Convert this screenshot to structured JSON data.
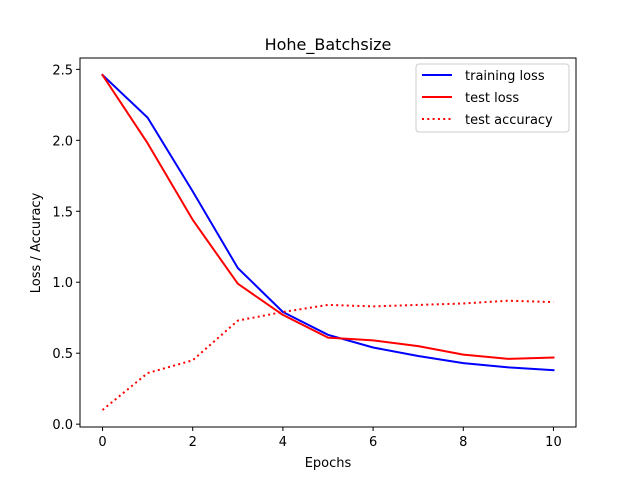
{
  "chart_data": {
    "type": "line",
    "title": "Hohe_Batchsize",
    "xlabel": "Epochs",
    "ylabel": "Loss / Accuracy",
    "xlim": [
      -0.5,
      10.5
    ],
    "ylim": [
      -0.02,
      2.58
    ],
    "xticks": [
      0,
      2,
      4,
      6,
      8,
      10
    ],
    "xtick_labels": [
      "0",
      "2",
      "4",
      "6",
      "8",
      "10"
    ],
    "yticks": [
      0.0,
      0.5,
      1.0,
      1.5,
      2.0,
      2.5
    ],
    "ytick_labels": [
      "0.0",
      "0.5",
      "1.0",
      "1.5",
      "2.0",
      "2.5"
    ],
    "grid": false,
    "legend_position": "top-right",
    "x": [
      0,
      1,
      2,
      3,
      4,
      5,
      6,
      7,
      8,
      9,
      10
    ],
    "series": [
      {
        "name": "training loss",
        "color": "#0000ff",
        "style": "solid",
        "values": [
          2.46,
          2.16,
          1.64,
          1.1,
          0.79,
          0.63,
          0.54,
          0.48,
          0.43,
          0.4,
          0.38
        ]
      },
      {
        "name": "test loss",
        "color": "#ff0000",
        "style": "solid",
        "values": [
          2.46,
          1.98,
          1.44,
          0.99,
          0.77,
          0.61,
          0.59,
          0.55,
          0.49,
          0.46,
          0.47
        ]
      },
      {
        "name": "test accuracy",
        "color": "#ff0000",
        "style": "dotted",
        "values": [
          0.1,
          0.36,
          0.45,
          0.73,
          0.79,
          0.84,
          0.83,
          0.84,
          0.85,
          0.87,
          0.86
        ]
      }
    ]
  }
}
